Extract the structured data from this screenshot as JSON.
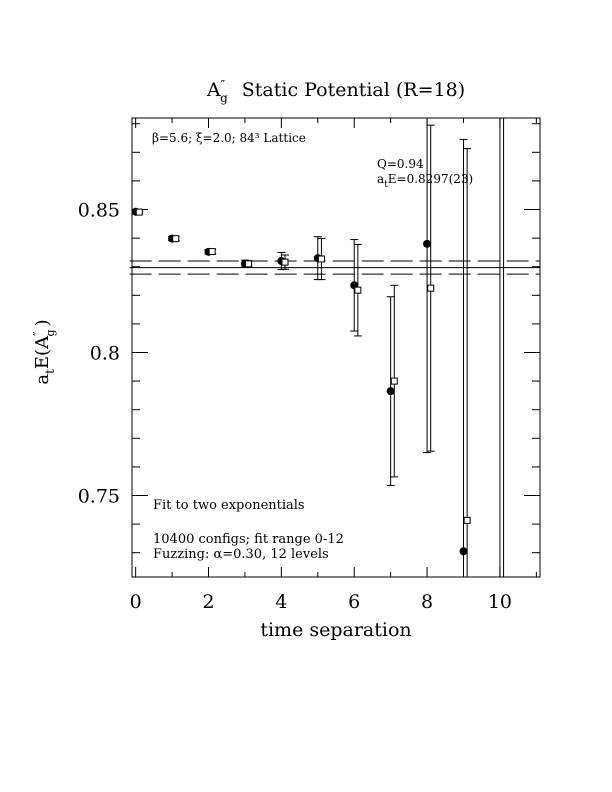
{
  "chart_data": {
    "type": "scatter",
    "title_main": "A",
    "title_sup": "″",
    "title_sub": "g",
    "title_rest": "Static Potential (R=18)",
    "xlabel": "time separation",
    "ylabel_main": "a",
    "ylabel_sub": "t",
    "ylabel_mid": "E(A",
    "ylabel_sup": "″",
    "ylabel_sub2": "g",
    "ylabel_end": ")",
    "xlim": [
      -0.1,
      11.1
    ],
    "ylim": [
      0.7215,
      0.882
    ],
    "x_ticks": [
      0,
      2,
      4,
      6,
      8,
      10
    ],
    "x_tick_labels": [
      "0",
      "2",
      "4",
      "6",
      "8",
      "10"
    ],
    "y_ticks": [
      0.75,
      0.8,
      0.85
    ],
    "y_tick_labels": [
      "0.75",
      "0.8",
      "0.85"
    ],
    "info_text": {
      "params": "β=5.6; ξ=2.0; 84³ Lattice",
      "q": "Q=0.94",
      "energy_prefix": "a",
      "energy_sub": "t",
      "energy_rest": "E=0.8297(23)"
    },
    "notes": {
      "fit_type": "Fit to two exponentials",
      "configs": "10400 configs; fit range 0-12",
      "fuzzing": "Fuzzing: α=0.30, 12 levels"
    },
    "fit": {
      "center": 0.8297,
      "error": 0.0023,
      "x_range": [
        0,
        11.1
      ]
    },
    "series": [
      {
        "marker": "filled-circle",
        "points": [
          {
            "x": 0,
            "y": 0.8492,
            "yerr": 0.0004
          },
          {
            "x": 1,
            "y": 0.8398,
            "yerr": 0.0007
          },
          {
            "x": 2,
            "y": 0.8352,
            "yerr": 0.0008
          },
          {
            "x": 3,
            "y": 0.8311,
            "yerr": 0.0012
          },
          {
            "x": 4,
            "y": 0.832,
            "yerr": 0.003
          },
          {
            "x": 5,
            "y": 0.833,
            "yerr": 0.0075
          },
          {
            "x": 6,
            "y": 0.8235,
            "yerr": 0.016
          },
          {
            "x": 7,
            "y": 0.7865,
            "yerr": 0.033
          },
          {
            "x": 8,
            "y": 0.838,
            "yerr": 0.073
          },
          {
            "x": 9,
            "y": 0.7305,
            "yerr": 0.144
          },
          {
            "x": 10,
            "y": null,
            "yerr": 0.16
          }
        ]
      },
      {
        "marker": "open-square",
        "points": [
          {
            "x": 0.1,
            "y": 0.8491,
            "yerr": 0.0004
          },
          {
            "x": 1.1,
            "y": 0.8398,
            "yerr": 0.0007
          },
          {
            "x": 2.1,
            "y": 0.8353,
            "yerr": 0.0008
          },
          {
            "x": 3.1,
            "y": 0.831,
            "yerr": 0.0011
          },
          {
            "x": 4.1,
            "y": 0.8316,
            "yerr": 0.0025
          },
          {
            "x": 5.1,
            "y": 0.8327,
            "yerr": 0.0072
          },
          {
            "x": 6.1,
            "y": 0.8218,
            "yerr": 0.016
          },
          {
            "x": 7.1,
            "y": 0.79,
            "yerr": 0.0335
          },
          {
            "x": 8.1,
            "y": 0.8225,
            "yerr": 0.057
          },
          {
            "x": 9.1,
            "y": 0.7413,
            "yerr": 0.13
          },
          {
            "x": 10.1,
            "y": null,
            "yerr": 0.16
          }
        ]
      }
    ]
  }
}
